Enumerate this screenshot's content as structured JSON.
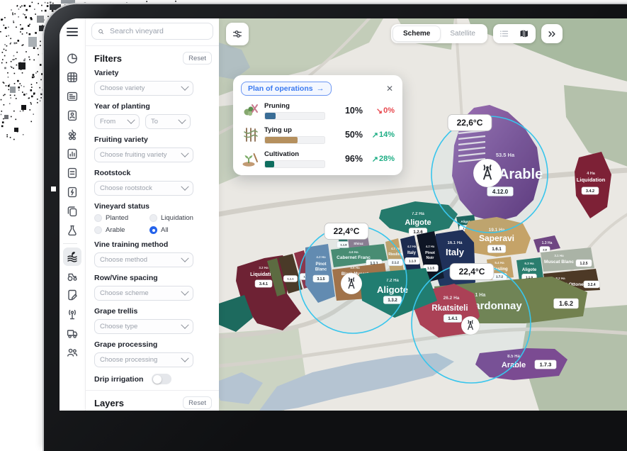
{
  "sidebar": {
    "search_placeholder": "Search vineyard",
    "filters_title": "Filters",
    "reset_label": "Reset",
    "groups": [
      {
        "label": "Variety",
        "placeholder": "Choose variety"
      },
      {
        "label": "Year of planting",
        "from": "From",
        "to": "To"
      },
      {
        "label": "Fruiting variety",
        "placeholder": "Choose fruiting variety"
      },
      {
        "label": "Rootstock",
        "placeholder": "Choose rootstock"
      },
      {
        "label": "Vineyard status",
        "options": [
          "Planted",
          "Liquidation",
          "Arable",
          "All"
        ],
        "selected": "All"
      },
      {
        "label": "Vine training method",
        "placeholder": "Choose method"
      },
      {
        "label": "Row/Vine spacing",
        "placeholder": "Choose scheme"
      },
      {
        "label": "Grape trellis",
        "placeholder": "Choose type"
      },
      {
        "label": "Grape processing",
        "placeholder": "Choose processing"
      },
      {
        "label": "Drip irrigation",
        "value": "off"
      }
    ],
    "layers_title": "Layers",
    "layers_reset_label": "Reset"
  },
  "rail": {
    "items": [
      {
        "icon": "pie-chart"
      },
      {
        "icon": "grid"
      },
      {
        "icon": "news"
      },
      {
        "icon": "id-badge"
      },
      {
        "icon": "grapes"
      },
      {
        "icon": "bar-chart-doc"
      },
      {
        "icon": "document"
      },
      {
        "icon": "document-flash"
      },
      {
        "icon": "copy"
      },
      {
        "icon": "flask",
        "divider_after": true
      },
      {
        "icon": "vineyard",
        "selected": true
      },
      {
        "icon": "tractor"
      },
      {
        "icon": "note-edit"
      },
      {
        "icon": "antenna"
      },
      {
        "icon": "truck"
      },
      {
        "icon": "users"
      }
    ]
  },
  "map": {
    "controls": {
      "scheme_label": "Scheme",
      "satellite_label": "Satellite",
      "active": "Scheme"
    },
    "panel": {
      "title": "Plan of operations",
      "trend_colors": {
        "up": "#1fae85",
        "down": "#e8494f"
      },
      "rows": [
        {
          "icon": "pruning-plant",
          "name": "Pruning",
          "value": "10%",
          "delta": "0%",
          "trend": "down",
          "bar_fill_pct": 18,
          "color": "#3a6d96"
        },
        {
          "icon": "tying-vine",
          "name": "Tying up",
          "value": "50%",
          "delta": "14%",
          "trend": "up",
          "bar_fill_pct": 55,
          "color": "#b5905e"
        },
        {
          "icon": "cultivation-sprout",
          "name": "Cultivation",
          "value": "96%",
          "delta": "28%",
          "trend": "up",
          "bar_fill_pct": 16,
          "color": "#0e6e5f"
        }
      ]
    },
    "temps": [
      {
        "id": "t1",
        "label": "22,6°C"
      },
      {
        "id": "t2",
        "label": "22,4°C"
      },
      {
        "id": "t3",
        "label": "22,4°C"
      }
    ],
    "plots": [
      {
        "id": "arable-main",
        "area": "53.5 Ha",
        "name": "Arable",
        "badge": "4.12.0",
        "color": "#8a5ba0"
      },
      {
        "id": "liq-right",
        "area": "4 Ha",
        "name": "Liquidation",
        "badge": "3.4.2",
        "color": "#7d2136"
      },
      {
        "id": "aligote-top",
        "area": "7.2 Ha",
        "name": "Aligote",
        "badge": "1.2.6",
        "color": "#257a6c"
      },
      {
        "id": "aligote-sm",
        "area": "",
        "name": "Aligote",
        "badge": "1.6.2",
        "color": "#1b6358"
      },
      {
        "id": "saperavi",
        "area": "19.1 Ha",
        "name": "Saperavi",
        "badge": "1.6.1",
        "color": "#c5a368"
      },
      {
        "id": "purple-sliver",
        "area": "1.3 Ha",
        "name": "",
        "badge": "2.8",
        "color": "#6f4682"
      },
      {
        "id": "italy-big",
        "area": "16.1 Ha",
        "name": "Italy",
        "badge": "",
        "color": "#20315a"
      },
      {
        "id": "riesling-l",
        "area": "4.2 Ha",
        "name": "Riesling",
        "badge": "2.1.2",
        "color": "#c2a168"
      },
      {
        "id": "italy-sm",
        "area": "4.2 Ha",
        "name": "Italy",
        "badge": "1.1.3",
        "color": "#1c2b50"
      },
      {
        "id": "pinot-noir",
        "area": "4.2 Ha",
        "name": "Pinot Noir",
        "badge": "1.1.5",
        "color": "#0e1524"
      },
      {
        "id": "riesling-sm",
        "area": "5.4 Ha",
        "name": "Riesling",
        "badge": "1.7.2",
        "color": "#c2a168"
      },
      {
        "id": "aligote-r",
        "area": "6.3 Ha",
        "name": "Aligote",
        "badge": "1.1.9",
        "color": "#2a7d6e"
      },
      {
        "id": "muscat-blanc",
        "area": "3.1 Ha",
        "name": "Muscat Blanc",
        "badge": "1.2.5",
        "color": "#aab3a6"
      },
      {
        "id": "muscat-ottonel",
        "area": "8.2 Ha",
        "name": "Muscat Ottonel",
        "badge": "3.2.4",
        "color": "#4d3926"
      },
      {
        "id": "chardonnay",
        "area": "19.1 Ha",
        "name": "Chardonnay",
        "badge": "1.6.2",
        "color": "#72814f"
      },
      {
        "id": "rkatsiteli",
        "area": "26.2 Ha",
        "name": "Rkatsiteli",
        "badge": "1.4.1",
        "color": "#b03a4e"
      },
      {
        "id": "arable-bottom",
        "area": "8.5 Ha",
        "name": "Arable",
        "badge": "1.7.3",
        "color": "#7b4b92"
      },
      {
        "id": "liq-left",
        "area": "3.2 Ha",
        "name": "Liquidation",
        "badge": "3.4.1",
        "color": "#6e2234"
      },
      {
        "id": "sliver-olive",
        "area": "",
        "name": "",
        "badge": "",
        "color": "#5c6b41"
      },
      {
        "id": "sliver-brown",
        "area": "",
        "name": "",
        "badge": "1.1.1",
        "color": "#4a3a28"
      },
      {
        "id": "sliver-crimson",
        "area": "",
        "name": "",
        "badge": "1.1.2",
        "color": "#8e3246"
      },
      {
        "id": "pinot-blanc",
        "area": "4.2 Ha",
        "name": "Pinot Blanc",
        "badge": "3.1.5",
        "color": "#6488ae"
      },
      {
        "id": "sliver-teal",
        "area": "",
        "name": "",
        "badge": "1.1.8",
        "color": "#2a6e63"
      },
      {
        "id": "shiraz",
        "area": "",
        "name": "Shiraz",
        "badge": "",
        "color": "#8e7a8e"
      },
      {
        "id": "cabernet",
        "area": "4.6 Ha",
        "name": "Cabernet Franc",
        "badge": "1.1.1",
        "color": "#488a6d"
      },
      {
        "id": "black-muscat",
        "area": "4.6 Ha",
        "name": "Black Muscat",
        "badge": "",
        "color": "#a66f42"
      },
      {
        "id": "aligote-big",
        "area": "7.2 Ha",
        "name": "Aligote",
        "badge": "1.3.2",
        "color": "#1f7a6b"
      },
      {
        "id": "teal-corner",
        "area": "",
        "name": "",
        "badge": "",
        "color": "#1d6a5e"
      }
    ]
  }
}
